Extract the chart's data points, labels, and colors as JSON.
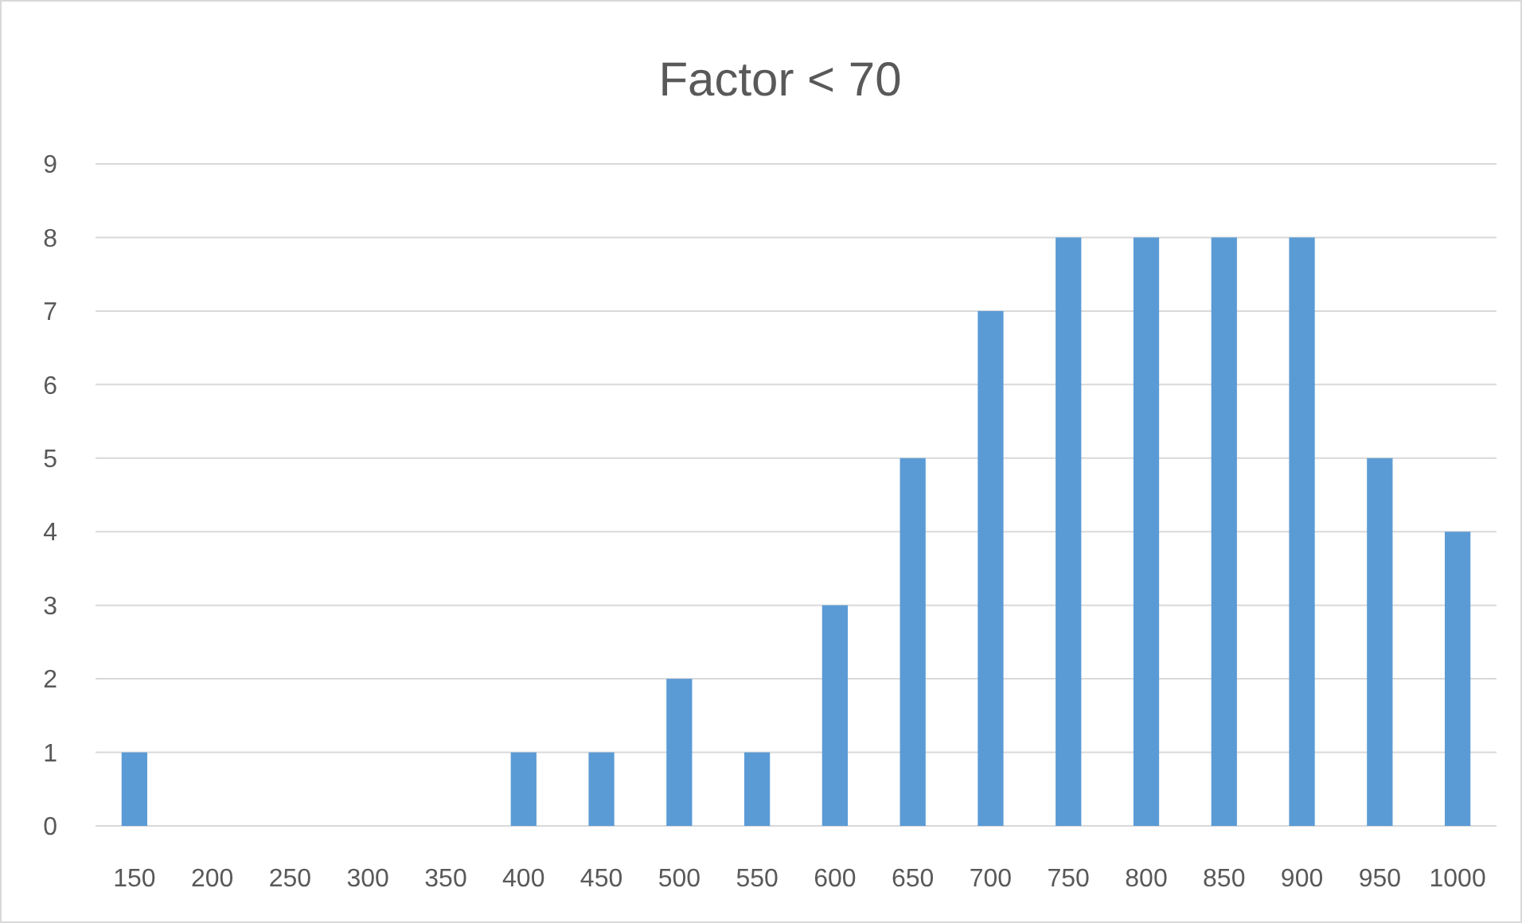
{
  "chart_data": {
    "type": "bar",
    "title": "Factor < 70",
    "categories": [
      "150",
      "200",
      "250",
      "300",
      "350",
      "400",
      "450",
      "500",
      "550",
      "600",
      "650",
      "700",
      "750",
      "800",
      "850",
      "900",
      "950",
      "1000"
    ],
    "values": [
      1,
      0,
      0,
      0,
      0,
      1,
      1,
      2,
      1,
      3,
      5,
      7,
      8,
      8,
      8,
      8,
      5,
      4
    ],
    "color": "#5b9bd5",
    "ylim": [
      0,
      9
    ],
    "yticks": [
      0,
      1,
      2,
      3,
      4,
      5,
      6,
      7,
      8,
      9
    ],
    "grid": "y"
  }
}
